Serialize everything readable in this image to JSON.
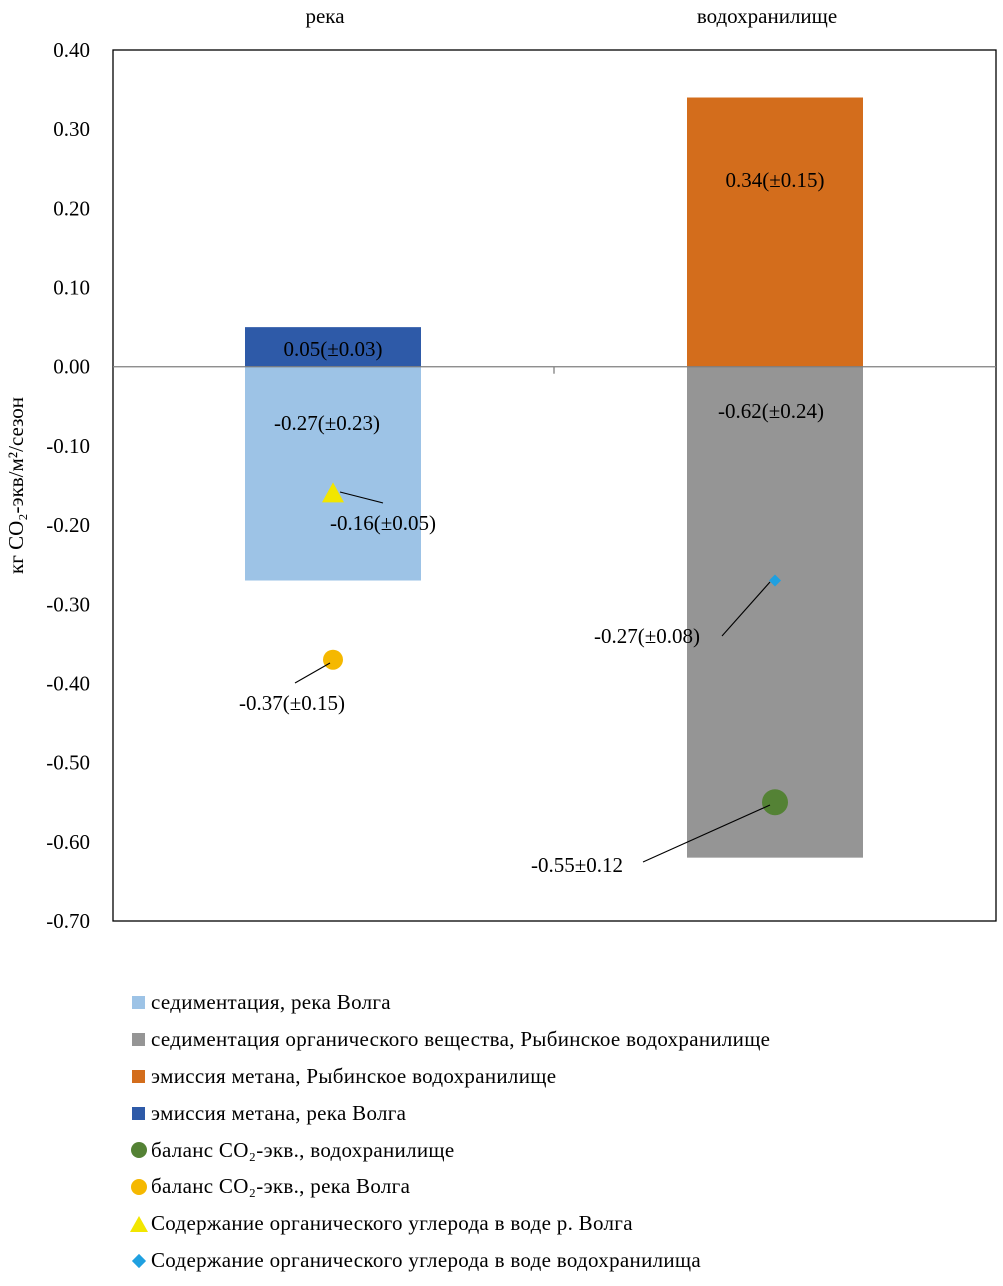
{
  "chart_data": {
    "type": "bar",
    "categories": [
      "река",
      "водохранилище"
    ],
    "ylabel": "кг CO₂-экв/м²/сезон",
    "ylim": [
      -0.7,
      0.4
    ],
    "yticks": [
      0.4,
      0.3,
      0.2,
      0.1,
      0.0,
      -0.1,
      -0.2,
      -0.3,
      -0.4,
      -0.5,
      -0.6,
      -0.7
    ],
    "ytick_labels": [
      "0.40",
      "0.30",
      "0.20",
      "0.10",
      "0.00",
      "-0.10",
      "-0.20",
      "-0.30",
      "-0.40",
      "-0.50",
      "-0.60",
      "-0.70"
    ],
    "bars": [
      {
        "category": "река",
        "series": "седиментация, река Волга",
        "value": -0.27,
        "label": "-0.27(±0.23)",
        "color": "#9dc3e6"
      },
      {
        "category": "река",
        "series": "эмиссия метана, река Волга",
        "value": 0.05,
        "label": "0.05(±0.03)",
        "color": "#2e5aa8"
      },
      {
        "category": "водохранилище",
        "series": "седиментация органического вещества, Рыбинское водохранилище",
        "value": -0.62,
        "label": "-0.62(±0.24)",
        "color": "#959595"
      },
      {
        "category": "водохранилище",
        "series": "эмиссия метана, Рыбинское водохранилище",
        "value": 0.34,
        "label": "0.34(±0.15)",
        "color": "#d36d1c"
      }
    ],
    "points": [
      {
        "category": "река",
        "series": "баланс CO₂-экв., река Волга",
        "value": -0.37,
        "label": "-0.37(±0.15)",
        "marker": "circle",
        "color": "#f5b800"
      },
      {
        "category": "река",
        "series": "Содержание органического углерода в воде р. Волга",
        "value": -0.16,
        "label": "-0.16(±0.05)",
        "marker": "triangle",
        "color": "#f2e600"
      },
      {
        "category": "водохранилище",
        "series": "баланс CO₂-экв., водохранилище",
        "value": -0.55,
        "label": "-0.55±0.12",
        "marker": "circle",
        "color": "#548235"
      },
      {
        "category": "водохранилище",
        "series": "Содержание органического углерода в воде водохранилища",
        "value": -0.27,
        "label": "-0.27(±0.08)",
        "marker": "diamond",
        "color": "#1fa0e0"
      }
    ],
    "legend": [
      {
        "label": "седиментация, река Волга",
        "marker": "square",
        "color": "#9dc3e6"
      },
      {
        "label": "седиментация органического вещества, Рыбинское водохранилище",
        "marker": "square",
        "color": "#959595"
      },
      {
        "label": "эмиссия метана, Рыбинское водохранилище",
        "marker": "square",
        "color": "#d36d1c"
      },
      {
        "label": "эмиссия метана, река Волга",
        "marker": "square",
        "color": "#2e5aa8"
      },
      {
        "label": "баланс CO₂-экв., водохранилище",
        "marker": "circle",
        "color": "#548235"
      },
      {
        "label": "баланс CO₂-экв., река Волга",
        "marker": "circle",
        "color": "#f5b800"
      },
      {
        "label": "Содержание органического углерода в воде р. Волга",
        "marker": "triangle",
        "color": "#f2e600"
      },
      {
        "label": "Содержание органического углерода в воде водохранилища",
        "marker": "diamond",
        "color": "#1fa0e0"
      }
    ],
    "legend_position": "bottom",
    "grid": false
  }
}
